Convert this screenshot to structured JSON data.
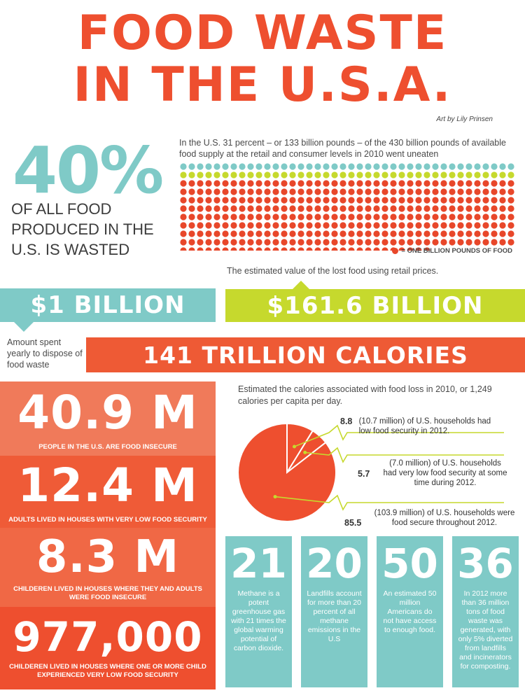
{
  "title": {
    "line1": "FOOD WASTE",
    "line2": "IN THE U.S.A."
  },
  "credit": "Art by Lily Prinsen",
  "headline_stat": {
    "value": "40%",
    "caption": "OF ALL FOOD PRODUCED IN THE U.S. IS WASTED"
  },
  "intro": "In the U.S. 31 percent – or 133 billion pounds – of the 430 billion pounds of available food supply at the retail and consumer levels in 2010 went uneaten",
  "pictogram": {
    "total_icons": 430,
    "wasted_icons": 133,
    "legend": "= ONE BILLION POUNDS OF FOOD",
    "colors": {
      "top": "#7fcac7",
      "mid": "#c6d92d",
      "rest": "#e8472a"
    }
  },
  "estimated_value_note": "The estimated value of the lost food using retail prices.",
  "bands": {
    "disposal": "$1 BILLION",
    "value": "$161.6 BILLION",
    "calories": "141 TRILLION CALORIES"
  },
  "disposal_note": "Amount spent yearly to dispose of food waste",
  "stats": [
    {
      "value": "40.9 M",
      "caption": "PEOPLE IN THE U.S. ARE FOOD INSECURE"
    },
    {
      "value": "12.4 M",
      "caption": "ADULTS LIVED IN HOUSES WITH VERY LOW FOOD SECURITY"
    },
    {
      "value": "8.3 M",
      "caption": "CHILDEREN LIVED IN HOUSES WHERE THEY AND ADULTS WERE FOOD INSECURE"
    },
    {
      "value": "977,000",
      "caption": "CHILDEREN LIVED IN HOUSES WHERE ONE OR MORE CHILD EXPERIENCED VERY LOW FOOD SECURITY"
    }
  ],
  "calories_note": "Estimated the calories associated with food loss in 2010, or 1,249 calories per capita per day.",
  "households": [
    {
      "value": "8.8",
      "text": "(10.7 million) of U.S. households had low food security in 2012."
    },
    {
      "value": "5.7",
      "text": "(7.0 million) of U.S. households had very low food security at some time during 2012."
    },
    {
      "value": "85.5",
      "text": "(103.9 million) of U.S. households were food secure throughout 2012."
    }
  ],
  "pie": {
    "values": [
      8.8,
      5.7,
      85.5
    ],
    "color": "#ee4f2f",
    "line_color": "#c6d92d"
  },
  "facts": [
    {
      "value": "21",
      "text": "Methane is a potent greenhouse gas with 21 times the global warming potential of carbon dioxide."
    },
    {
      "value": "20",
      "text": "Landfills account for more than 20 percent of all methane emissions in the U.S"
    },
    {
      "value": "50",
      "text": "An estimated 50 million Americans do not have access to enough food."
    },
    {
      "value": "36",
      "text": "In 2012 more than 36 million tons of food waste was generated, with only 5% diverted from landfills and incinerators for composting."
    }
  ]
}
